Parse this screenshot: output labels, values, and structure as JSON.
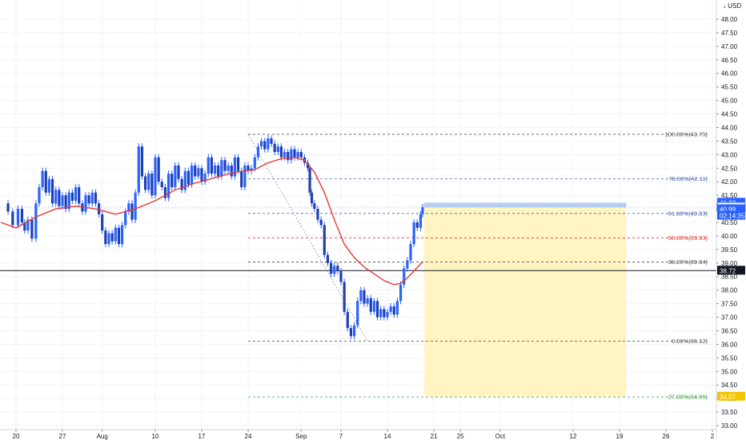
{
  "chart_data": {
    "type": "candlestick",
    "currency": "USD",
    "y_axis": {
      "min": 33.0,
      "max": 49.0,
      "ticks": [
        "48.00",
        "47.50",
        "47.00",
        "46.50",
        "46.00",
        "45.50",
        "45.00",
        "44.50",
        "44.00",
        "43.50",
        "43.00",
        "42.50",
        "42.00",
        "41.50",
        "41.00",
        "40.50",
        "40.00",
        "39.50",
        "39.00",
        "38.50",
        "38.00",
        "37.50",
        "37.00",
        "36.50",
        "36.00",
        "35.50",
        "35.00",
        "34.50",
        "34.00",
        "33.50",
        "33.00"
      ]
    },
    "x_axis": {
      "ticks": [
        {
          "label": "20",
          "t": 0
        },
        {
          "label": "27",
          "t": 7
        },
        {
          "label": "Aug",
          "t": 13
        },
        {
          "label": "10",
          "t": 21
        },
        {
          "label": "17",
          "t": 28
        },
        {
          "label": "24",
          "t": 35
        },
        {
          "label": "Sep",
          "t": 43
        },
        {
          "label": "7",
          "t": 49
        },
        {
          "label": "14",
          "t": 56
        },
        {
          "label": "21",
          "t": 63
        },
        {
          "label": "25",
          "t": 67
        },
        {
          "label": "Oct",
          "t": 73
        },
        {
          "label": "12",
          "t": 84
        },
        {
          "label": "19",
          "t": 91
        },
        {
          "label": "26",
          "t": 98
        },
        {
          "label": "2",
          "t": 105
        }
      ]
    },
    "price_series": [
      [
        -2.3,
        41.2
      ],
      [
        -1.2,
        40.9
      ],
      [
        -0.5,
        40.4
      ],
      [
        0.3,
        41.0
      ],
      [
        0.9,
        40.5
      ],
      [
        1.3,
        40.2
      ],
      [
        1.8,
        40.6
      ],
      [
        2.4,
        39.9
      ],
      [
        3.0,
        41.2
      ],
      [
        3.5,
        41.8
      ],
      [
        4.0,
        42.4
      ],
      [
        4.5,
        41.6
      ],
      [
        5.0,
        42.1
      ],
      [
        5.5,
        41.2
      ],
      [
        6.0,
        41.7
      ],
      [
        6.5,
        41.1
      ],
      [
        7.0,
        41.5
      ],
      [
        7.5,
        41.0
      ],
      [
        8.0,
        41.6
      ],
      [
        8.5,
        41.3
      ],
      [
        9.0,
        41.8
      ],
      [
        9.5,
        41.2
      ],
      [
        10.0,
        40.9
      ],
      [
        10.5,
        41.5
      ],
      [
        11.0,
        41.2
      ],
      [
        11.5,
        41.6
      ],
      [
        12.0,
        41.2
      ],
      [
        12.5,
        40.8
      ],
      [
        13.0,
        40.2
      ],
      [
        13.5,
        39.7
      ],
      [
        14.0,
        40.1
      ],
      [
        14.5,
        39.8
      ],
      [
        15.0,
        40.3
      ],
      [
        15.5,
        39.7
      ],
      [
        16.0,
        40.4
      ],
      [
        16.5,
        40.9
      ],
      [
        17.0,
        41.2
      ],
      [
        17.5,
        40.6
      ],
      [
        18.0,
        41.6
      ],
      [
        18.5,
        43.3
      ],
      [
        19.0,
        42.2
      ],
      [
        19.5,
        41.7
      ],
      [
        20.0,
        42.3
      ],
      [
        20.5,
        41.5
      ],
      [
        21.0,
        42.9
      ],
      [
        21.5,
        42.0
      ],
      [
        22.0,
        41.8
      ],
      [
        22.5,
        41.4
      ],
      [
        23.0,
        42.3
      ],
      [
        23.5,
        41.8
      ],
      [
        24.0,
        42.6
      ],
      [
        24.5,
        42.1
      ],
      [
        25.0,
        41.7
      ],
      [
        25.5,
        42.4
      ],
      [
        26.0,
        41.9
      ],
      [
        26.5,
        42.6
      ],
      [
        27.0,
        42.2
      ],
      [
        27.5,
        42.5
      ],
      [
        28.0,
        42.0
      ],
      [
        28.5,
        42.3
      ],
      [
        29.0,
        42.9
      ],
      [
        29.5,
        42.3
      ],
      [
        30.0,
        42.6
      ],
      [
        30.5,
        42.2
      ],
      [
        31.0,
        42.8
      ],
      [
        31.5,
        42.4
      ],
      [
        32.0,
        42.6
      ],
      [
        32.5,
        42.2
      ],
      [
        33.0,
        42.9
      ],
      [
        33.5,
        42.4
      ],
      [
        34.0,
        41.8
      ],
      [
        34.5,
        42.6
      ],
      [
        35.0,
        42.4
      ],
      [
        35.5,
        42.5
      ],
      [
        36.0,
        42.9
      ],
      [
        36.5,
        43.3
      ],
      [
        37.0,
        43.5
      ],
      [
        37.5,
        43.2
      ],
      [
        38.0,
        43.6
      ],
      [
        38.5,
        43.4
      ],
      [
        39.0,
        43.1
      ],
      [
        39.5,
        43.3
      ],
      [
        40.0,
        42.9
      ],
      [
        40.5,
        43.1
      ],
      [
        41.0,
        42.8
      ],
      [
        41.5,
        43.2
      ],
      [
        42.0,
        42.9
      ],
      [
        42.5,
        43.1
      ],
      [
        43.0,
        42.9
      ],
      [
        43.5,
        42.7
      ],
      [
        44.0,
        42.5
      ],
      [
        44.3,
        41.6
      ],
      [
        44.6,
        41.2
      ],
      [
        45.0,
        41.0
      ],
      [
        45.5,
        40.6
      ],
      [
        46.0,
        40.4
      ],
      [
        46.5,
        39.3
      ],
      [
        47.0,
        39.0
      ],
      [
        47.5,
        38.6
      ],
      [
        48.0,
        38.9
      ],
      [
        48.5,
        38.7
      ],
      [
        49.0,
        38.3
      ],
      [
        49.5,
        37.2
      ],
      [
        50.0,
        36.6
      ],
      [
        50.5,
        36.3
      ],
      [
        51.0,
        36.7
      ],
      [
        51.5,
        37.6
      ],
      [
        52.0,
        38.0
      ],
      [
        52.5,
        37.5
      ],
      [
        53.0,
        37.7
      ],
      [
        53.5,
        37.2
      ],
      [
        54.0,
        37.6
      ],
      [
        54.5,
        37.0
      ],
      [
        55.0,
        37.3
      ],
      [
        55.5,
        37.0
      ],
      [
        56.0,
        37.2
      ],
      [
        56.5,
        37.4
      ],
      [
        57.0,
        37.1
      ],
      [
        57.5,
        37.6
      ],
      [
        58.0,
        38.2
      ],
      [
        58.5,
        38.8
      ],
      [
        59.0,
        39.1
      ],
      [
        59.5,
        39.7
      ],
      [
        60.0,
        40.5
      ],
      [
        60.5,
        40.3
      ],
      [
        61.0,
        40.8
      ],
      [
        61.3,
        41.06
      ]
    ],
    "ma_series": [
      [
        -2.3,
        40.5
      ],
      [
        0.0,
        40.3
      ],
      [
        3.0,
        40.7
      ],
      [
        6.0,
        41.0
      ],
      [
        9.0,
        41.1
      ],
      [
        12.0,
        41.0
      ],
      [
        15.0,
        40.8
      ],
      [
        18.0,
        41.0
      ],
      [
        21.0,
        41.3
      ],
      [
        24.0,
        41.7
      ],
      [
        27.0,
        41.95
      ],
      [
        30.0,
        42.15
      ],
      [
        33.0,
        42.35
      ],
      [
        36.0,
        42.45
      ],
      [
        38.0,
        42.7
      ],
      [
        40.0,
        42.85
      ],
      [
        42.0,
        42.9
      ],
      [
        43.5,
        42.8
      ],
      [
        45.0,
        42.35
      ],
      [
        46.5,
        41.6
      ],
      [
        48.0,
        40.6
      ],
      [
        49.5,
        39.7
      ],
      [
        51.0,
        39.2
      ],
      [
        52.5,
        38.85
      ],
      [
        54.0,
        38.6
      ],
      [
        55.5,
        38.35
      ],
      [
        57.0,
        38.2
      ],
      [
        58.0,
        38.25
      ],
      [
        59.0,
        38.45
      ],
      [
        60.0,
        38.7
      ],
      [
        61.3,
        39.05
      ]
    ],
    "fibonacci": {
      "start_t": 35,
      "end_t": 105,
      "levels": [
        {
          "label": "100.00%(43.75)",
          "value": 43.75,
          "color": "#555555"
        },
        {
          "label": "78.60%(42.11)",
          "value": 42.11,
          "color": "#4a63b8"
        },
        {
          "label": "61.80%(40.83)",
          "value": 40.83,
          "color": "#4a63b8"
        },
        {
          "label": "50.00%(39.93)",
          "value": 39.93,
          "color": "#e53935"
        },
        {
          "label": "38.20%(39.04)",
          "value": 39.04,
          "color": "#555555"
        },
        {
          "label": "0.00%(36.12)",
          "value": 36.12,
          "color": "#555555"
        },
        {
          "label": "-27.00%(34.06)",
          "value": 34.06,
          "color": "#43a047"
        }
      ],
      "trend_line": {
        "from": [
          35,
          43.75
        ],
        "to": [
          53,
          36.12
        ]
      }
    },
    "position_box": {
      "from_t": 61.5,
      "to_t": 92,
      "entry": 41.06,
      "target": 41.23,
      "stop": 34.07,
      "profit_color": "#b7cdf2",
      "loss_color": "#fff4c2"
    },
    "horizontal_line": {
      "value": 38.72,
      "color": "#131722"
    },
    "price_tags": [
      {
        "text": "41.23",
        "value": 41.23,
        "bg": "#2962ff",
        "fg": "#ffffff"
      },
      {
        "text": "41.06",
        "value": 41.06,
        "bg": "#ffffff",
        "fg": "#2962ff"
      },
      {
        "text": "40.99",
        "value": 40.99,
        "bg": "#2962ff",
        "fg": "#ffffff"
      },
      {
        "text": "02:14:35",
        "value": 40.75,
        "bg": "#2962ff",
        "fg": "#ffffff"
      },
      {
        "text": "38.72",
        "value": 38.72,
        "bg": "#131722",
        "fg": "#ffffff"
      },
      {
        "text": "34.07",
        "value": 34.07,
        "bg": "#f5c400",
        "fg": "#131722"
      }
    ],
    "colors": {
      "candles": "#2962ff",
      "ma": "#e53935",
      "grid": "#f0f3fa",
      "axis_text": "#131722"
    }
  }
}
